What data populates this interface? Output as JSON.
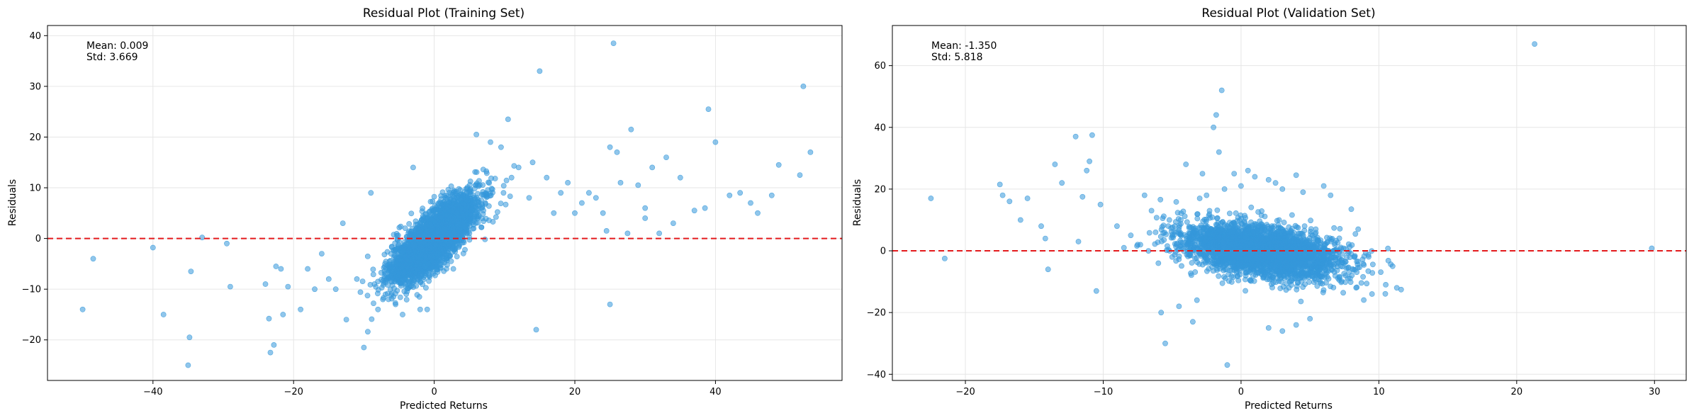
{
  "chart_data": [
    {
      "type": "scatter",
      "title": "Residual Plot (Training Set)",
      "xlabel": "Predicted Returns",
      "ylabel": "Residuals",
      "xlim": [
        -55,
        58
      ],
      "ylim": [
        -28,
        42
      ],
      "xticks": [
        -40,
        -20,
        0,
        20,
        40
      ],
      "yticks": [
        -20,
        -10,
        0,
        10,
        20,
        30,
        40
      ],
      "x_tick_labels": [
        "−40",
        "−20",
        "0",
        "20",
        "40"
      ],
      "y_tick_labels": [
        "−20",
        "−10",
        "0",
        "10",
        "20",
        "30",
        "40"
      ],
      "grid": true,
      "reference_line": {
        "y": 0,
        "color": "#e41a1c",
        "style": "dashed"
      },
      "point_color": "#3498db",
      "stats": {
        "mean": "Mean: 0.009",
        "std": "Std: 3.669"
      },
      "cluster": {
        "n": 3500,
        "x_center": 0,
        "x_sd": 3.0,
        "slope": 1.1,
        "y_sd": 2.6
      },
      "outliers": [
        [
          -50,
          -14
        ],
        [
          -48.5,
          -4
        ],
        [
          -40,
          -1.8
        ],
        [
          -38.5,
          -15
        ],
        [
          -35,
          -25
        ],
        [
          -34.8,
          -19.5
        ],
        [
          -34.6,
          -6.5
        ],
        [
          -33,
          0.2
        ],
        [
          -29.5,
          -1
        ],
        [
          -29,
          -9.5
        ],
        [
          -24,
          -9
        ],
        [
          -23.5,
          -15.8
        ],
        [
          -23.3,
          -22.5
        ],
        [
          -22.8,
          -21
        ],
        [
          -22.5,
          -5.5
        ],
        [
          -21.8,
          -6
        ],
        [
          -21.5,
          -15
        ],
        [
          -20.8,
          -9.5
        ],
        [
          -19,
          -14
        ],
        [
          -18,
          -6
        ],
        [
          -17,
          -10
        ],
        [
          -16,
          -3
        ],
        [
          -15,
          -8
        ],
        [
          -14,
          -10
        ],
        [
          -13,
          3
        ],
        [
          -12.5,
          -16
        ],
        [
          -11,
          -8
        ],
        [
          -10,
          -21.5
        ],
        [
          -9,
          9
        ],
        [
          -8.5,
          -9
        ],
        [
          -8,
          -14
        ],
        [
          -7,
          -5
        ],
        [
          -6.5,
          -12
        ],
        [
          -5.5,
          -13
        ],
        [
          -4.5,
          -15
        ],
        [
          -3,
          14
        ],
        [
          -2,
          -14
        ],
        [
          -1,
          -14
        ],
        [
          6,
          20.5
        ],
        [
          8,
          19
        ],
        [
          9.5,
          18
        ],
        [
          10.5,
          23.5
        ],
        [
          11,
          12
        ],
        [
          12,
          14
        ],
        [
          13.5,
          8
        ],
        [
          14,
          15
        ],
        [
          14.5,
          -18
        ],
        [
          15,
          33
        ],
        [
          16,
          12
        ],
        [
          17,
          5
        ],
        [
          18,
          9
        ],
        [
          20,
          5
        ],
        [
          22,
          9
        ],
        [
          23,
          8
        ],
        [
          24,
          5
        ],
        [
          24.5,
          1.5
        ],
        [
          25,
          18
        ],
        [
          25.5,
          38.5
        ],
        [
          26,
          17
        ],
        [
          26.5,
          11
        ],
        [
          27.5,
          1
        ],
        [
          28,
          21.5
        ],
        [
          29,
          10.5
        ],
        [
          30,
          6
        ],
        [
          31,
          14
        ],
        [
          32,
          1
        ],
        [
          33,
          16
        ],
        [
          34,
          3
        ],
        [
          37,
          5.5
        ],
        [
          38.5,
          6
        ],
        [
          39,
          25.5
        ],
        [
          40,
          19
        ],
        [
          42,
          8.5
        ],
        [
          43.5,
          9
        ],
        [
          45,
          7
        ],
        [
          46,
          5
        ],
        [
          48,
          8.5
        ],
        [
          49,
          14.5
        ],
        [
          52,
          12.5
        ],
        [
          52.5,
          30
        ],
        [
          53.5,
          17
        ],
        [
          25,
          -13
        ],
        [
          30,
          4
        ],
        [
          35,
          12
        ],
        [
          19,
          11
        ],
        [
          21,
          7
        ]
      ]
    },
    {
      "type": "scatter",
      "title": "Residual Plot (Validation Set)",
      "xlabel": "Predicted Returns",
      "ylabel": "Residuals",
      "xlim": [
        -25.3,
        32.3
      ],
      "ylim": [
        -42,
        73
      ],
      "xticks": [
        -20,
        -10,
        0,
        10,
        20,
        30
      ],
      "yticks": [
        -40,
        -20,
        0,
        20,
        40,
        60
      ],
      "x_tick_labels": [
        "−20",
        "−10",
        "0",
        "10",
        "20",
        "30"
      ],
      "y_tick_labels": [
        "−40",
        "−20",
        "0",
        "20",
        "40",
        "60"
      ],
      "grid": true,
      "reference_line": {
        "y": 0,
        "color": "#e41a1c",
        "style": "dashed"
      },
      "point_color": "#3498db",
      "stats": {
        "mean": "Mean: -1.350",
        "std": "Std: 5.818"
      },
      "cluster": {
        "n": 3200,
        "x_center": 1.5,
        "x_sd": 2.8,
        "slope": -0.7,
        "y_sd": 4.0
      },
      "outliers": [
        [
          -22.5,
          17
        ],
        [
          -21.5,
          -2.5
        ],
        [
          -17.5,
          21.5
        ],
        [
          -17.3,
          18
        ],
        [
          -16.8,
          16
        ],
        [
          -16,
          10
        ],
        [
          -15.5,
          17
        ],
        [
          -14.5,
          8
        ],
        [
          -14.2,
          4
        ],
        [
          -14,
          -6
        ],
        [
          -13,
          22
        ],
        [
          -12,
          37
        ],
        [
          -11.8,
          3
        ],
        [
          -11.5,
          17.5
        ],
        [
          -11.2,
          26
        ],
        [
          -11,
          29
        ],
        [
          -10.8,
          37.5
        ],
        [
          -10.5,
          -13
        ],
        [
          -10.2,
          15
        ],
        [
          -13.5,
          28
        ],
        [
          -8,
          5
        ],
        [
          -7.5,
          2
        ],
        [
          -7,
          18
        ],
        [
          -6.5,
          13
        ],
        [
          -6,
          -4
        ],
        [
          -5.8,
          -20
        ],
        [
          -5.5,
          -30
        ],
        [
          -5,
          -2
        ],
        [
          -4.5,
          -18
        ],
        [
          -4,
          28
        ],
        [
          -3.5,
          -23
        ],
        [
          -3,
          17
        ],
        [
          -2.8,
          25
        ],
        [
          -2.5,
          18
        ],
        [
          -2,
          40
        ],
        [
          -1.8,
          44
        ],
        [
          -1.6,
          32
        ],
        [
          -1.4,
          52
        ],
        [
          -1.2,
          20
        ],
        [
          -1,
          -37
        ],
        [
          0,
          21
        ],
        [
          0.5,
          26
        ],
        [
          1,
          24
        ],
        [
          2,
          23
        ],
        [
          2.5,
          22
        ],
        [
          3,
          20
        ],
        [
          4,
          24.5
        ],
        [
          4.5,
          19
        ],
        [
          6,
          21
        ],
        [
          6.5,
          18
        ],
        [
          8,
          13.5
        ],
        [
          8.5,
          7
        ],
        [
          -0.5,
          25
        ],
        [
          -3.2,
          -16
        ],
        [
          2,
          -25
        ],
        [
          3,
          -26
        ],
        [
          4,
          -24
        ],
        [
          5,
          -22
        ],
        [
          21.3,
          67
        ],
        [
          29.8,
          0.8
        ],
        [
          11.3,
          -12
        ],
        [
          11,
          -5
        ],
        [
          10.5,
          -11
        ],
        [
          9.5,
          -14
        ],
        [
          -9,
          8
        ],
        [
          -6.2,
          6
        ],
        [
          -8.5,
          1
        ],
        [
          -5.2,
          10
        ],
        [
          -4.8,
          8
        ]
      ]
    }
  ]
}
